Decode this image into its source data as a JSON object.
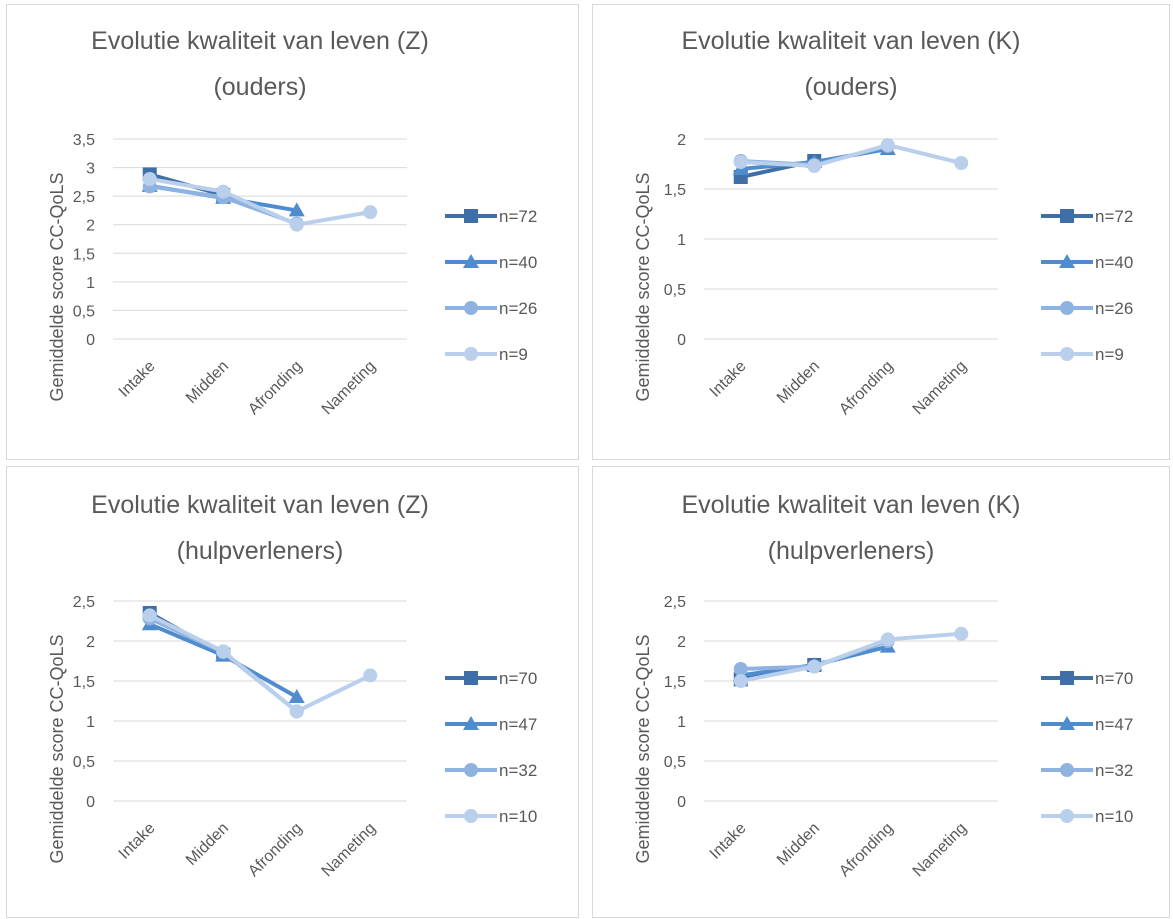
{
  "charts": [
    {
      "title_lines": [
        "Evolutie kwaliteit van leven (Z)",
        "(ouders)"
      ],
      "ylabel": "Gemiddelde score CC-QoLS",
      "y_ticks": [
        "0",
        "0,5",
        "1",
        "1,5",
        "2",
        "2,5",
        "3",
        "3,5"
      ],
      "ylim": [
        0,
        3.5
      ],
      "categories": [
        "Intake",
        "Midden",
        "Afronding",
        "Nameting"
      ],
      "legend": [
        "n=72",
        "n=40",
        "n=26",
        "n=9"
      ]
    },
    {
      "title_lines": [
        "Evolutie kwaliteit van leven (K)",
        "(ouders)"
      ],
      "ylabel": "Gemiddelde score CC-QoLS",
      "y_ticks": [
        "0",
        "0,5",
        "1",
        "1,5",
        "2"
      ],
      "ylim": [
        0,
        2
      ],
      "categories": [
        "Intake",
        "Midden",
        "Afronding",
        "Nameting"
      ],
      "legend": [
        "n=72",
        "n=40",
        "n=26",
        "n=9"
      ]
    },
    {
      "title_lines": [
        "Evolutie kwaliteit van leven (Z)",
        "(hulpverleners)"
      ],
      "ylabel": "Gemiddelde score CC-QoLS",
      "y_ticks": [
        "0",
        "0,5",
        "1",
        "1,5",
        "2",
        "2,5"
      ],
      "ylim": [
        0,
        2.5
      ],
      "categories": [
        "Intake",
        "Midden",
        "Afronding",
        "Nameting"
      ],
      "legend": [
        "n=70",
        "n=47",
        "n=32",
        "n=10"
      ]
    },
    {
      "title_lines": [
        "Evolutie kwaliteit van leven (K)",
        "(hulpverleners)"
      ],
      "ylabel": "Gemiddelde score CC-QoLS",
      "y_ticks": [
        "0",
        "0,5",
        "1",
        "1,5",
        "2",
        "2,5"
      ],
      "ylim": [
        0,
        2.5
      ],
      "categories": [
        "Intake",
        "Midden",
        "Afronding",
        "Nameting"
      ],
      "legend": [
        "n=70",
        "n=47",
        "n=32",
        "n=10"
      ]
    }
  ],
  "series_style": [
    {
      "marker": "square",
      "color": "#3e6fa6"
    },
    {
      "marker": "triangle",
      "color": "#4f8ccf"
    },
    {
      "marker": "circle",
      "color": "#8fb3e0"
    },
    {
      "marker": "circle",
      "color": "#b9cfec"
    }
  ],
  "chart_data": [
    {
      "type": "line",
      "title": "Evolutie kwaliteit van leven (Z) (ouders)",
      "ylabel": "Gemiddelde score CC-QoLS",
      "categories": [
        "Intake",
        "Midden",
        "Afronding",
        "Nameting"
      ],
      "ylim": [
        0,
        3.5
      ],
      "grid": true,
      "legend_position": "right",
      "series": [
        {
          "name": "n=72",
          "values": [
            2.88,
            2.52,
            null,
            null
          ]
        },
        {
          "name": "n=40",
          "values": [
            2.68,
            2.47,
            2.25,
            null
          ]
        },
        {
          "name": "n=26",
          "values": [
            2.67,
            2.48,
            2.02,
            null
          ]
        },
        {
          "name": "n=9",
          "values": [
            2.8,
            2.58,
            2.0,
            2.22
          ]
        }
      ]
    },
    {
      "type": "line",
      "title": "Evolutie kwaliteit van leven (K) (ouders)",
      "ylabel": "Gemiddelde score CC-QoLS",
      "categories": [
        "Intake",
        "Midden",
        "Afronding",
        "Nameting"
      ],
      "ylim": [
        0,
        2
      ],
      "grid": true,
      "legend_position": "right",
      "series": [
        {
          "name": "n=72",
          "values": [
            1.62,
            1.78,
            null,
            null
          ]
        },
        {
          "name": "n=40",
          "values": [
            1.7,
            1.77,
            1.9,
            null
          ]
        },
        {
          "name": "n=26",
          "values": [
            1.78,
            1.74,
            1.93,
            null
          ]
        },
        {
          "name": "n=9",
          "values": [
            1.77,
            1.73,
            1.94,
            1.76
          ]
        }
      ]
    },
    {
      "type": "line",
      "title": "Evolutie kwaliteit van leven (Z) (hulpverleners)",
      "ylabel": "Gemiddelde score CC-QoLS",
      "categories": [
        "Intake",
        "Midden",
        "Afronding",
        "Nameting"
      ],
      "ylim": [
        0,
        2.5
      ],
      "grid": true,
      "legend_position": "right",
      "series": [
        {
          "name": "n=70",
          "values": [
            2.35,
            1.83,
            null,
            null
          ]
        },
        {
          "name": "n=47",
          "values": [
            2.21,
            1.82,
            1.3,
            null
          ]
        },
        {
          "name": "n=32",
          "values": [
            2.28,
            1.86,
            1.12,
            null
          ]
        },
        {
          "name": "n=10",
          "values": [
            2.32,
            1.87,
            1.12,
            1.57
          ]
        }
      ]
    },
    {
      "type": "line",
      "title": "Evolutie kwaliteit van leven (K) (hulpverleners)",
      "ylabel": "Gemiddelde score CC-QoLS",
      "categories": [
        "Intake",
        "Midden",
        "Afronding",
        "Nameting"
      ],
      "ylim": [
        0,
        2.5
      ],
      "grid": true,
      "legend_position": "right",
      "series": [
        {
          "name": "n=70",
          "values": [
            1.52,
            1.7,
            null,
            null
          ]
        },
        {
          "name": "n=47",
          "values": [
            1.57,
            1.7,
            1.93,
            null
          ]
        },
        {
          "name": "n=32",
          "values": [
            1.65,
            1.68,
            2.0,
            null
          ]
        },
        {
          "name": "n=10",
          "values": [
            1.5,
            1.68,
            2.02,
            2.09
          ]
        }
      ]
    }
  ]
}
